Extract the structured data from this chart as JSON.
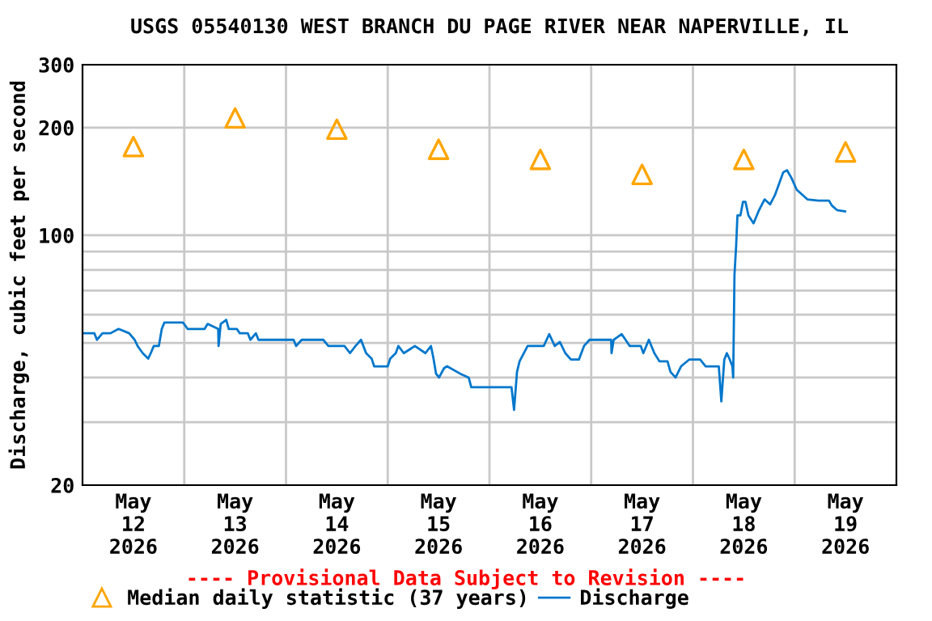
{
  "chart_data": {
    "type": "line",
    "title": "USGS 05540130 WEST BRANCH DU PAGE RIVER NEAR NAPERVILLE, IL",
    "ylabel": "Discharge, cubic feet per second",
    "annotations": [
      "---- Provisional Data Subject to Revision ----"
    ],
    "log": "y",
    "ylim": [
      20,
      300
    ],
    "yticks": [
      20,
      {
        "value": 30,
        "label": null
      },
      {
        "value": 40,
        "label": null
      },
      {
        "value": 50,
        "label": null
      },
      {
        "value": 60,
        "label": null
      },
      {
        "value": 70,
        "label": null
      },
      {
        "value": 80,
        "label": null
      },
      {
        "value": 90,
        "label": null
      },
      100,
      200,
      300
    ],
    "xlim": [
      "2026-05-12T00:00",
      "2026-05-20T00:00"
    ],
    "xticks": [
      {
        "value": "2026-05-12T12:00",
        "label": "May\n12\n2026"
      },
      {
        "value": "2026-05-13T12:00",
        "label": "May\n13\n2026"
      },
      {
        "value": "2026-05-14T12:00",
        "label": "May\n14\n2026"
      },
      {
        "value": "2026-05-15T12:00",
        "label": "May\n15\n2026"
      },
      {
        "value": "2026-05-16T12:00",
        "label": "May\n16\n2026"
      },
      {
        "value": "2026-05-17T12:00",
        "label": "May\n17\n2026"
      },
      {
        "value": "2026-05-18T12:00",
        "label": "May\n18\n2026"
      },
      {
        "value": "2026-05-19T12:00",
        "label": "May\n19\n2026"
      },
      {
        "value": "2026-05-13T00:00",
        "label": null
      },
      {
        "value": "2026-05-14T00:00",
        "label": null
      },
      {
        "value": "2026-05-15T00:00",
        "label": null
      },
      {
        "value": "2026-05-16T00:00",
        "label": null
      },
      {
        "value": "2026-05-17T00:00",
        "label": null
      },
      {
        "value": "2026-05-18T00:00",
        "label": null
      },
      {
        "value": "2026-05-19T00:00",
        "label": null
      }
    ],
    "grid": true,
    "legend": "bottom",
    "series": [
      {
        "name": "Median daily statistic (37 years)",
        "type": "scatter",
        "marker": "triangle",
        "color": "#ffa500",
        "x": [
          "2026-05-12T12:00",
          "2026-05-13T12:00",
          "2026-05-14T12:00",
          "2026-05-15T12:00",
          "2026-05-16T12:00",
          "2026-05-17T12:00",
          "2026-05-18T12:00",
          "2026-05-19T12:00"
        ],
        "values": [
          177,
          213,
          198,
          174,
          163,
          148,
          163,
          171
        ]
      },
      {
        "name": "Discharge",
        "color": "#0077cc",
        "line_style": "solid",
        "x": [
          "2026-05-12T00:15",
          "2026-05-12T02:48",
          "2026-05-12T03:24",
          "2026-05-12T04:42",
          "2026-05-12T06:36",
          "2026-05-12T08:30",
          "2026-05-12T11:00",
          "2026-05-12T12:18",
          "2026-05-12T13:00",
          "2026-05-12T14:12",
          "2026-05-12T15:30",
          "2026-05-12T16:06",
          "2026-05-12T16:48",
          "2026-05-12T18:00",
          "2026-05-12T18:42",
          "2026-05-12T19:18",
          "2026-05-12T23:42",
          "2026-05-13T00:48",
          "2026-05-13T04:48",
          "2026-05-13T05:30",
          "2026-05-13T08:00",
          "2026-05-13T08:06",
          "2026-05-13T08:36",
          "2026-05-13T09:54",
          "2026-05-13T10:30",
          "2026-05-13T12:24",
          "2026-05-13T13:06",
          "2026-05-13T15:00",
          "2026-05-13T15:36",
          "2026-05-13T16:54",
          "2026-05-13T17:30",
          "2026-05-13T20:06",
          "2026-05-14T01:48",
          "2026-05-14T02:24",
          "2026-05-14T03:42",
          "2026-05-14T08:48",
          "2026-05-14T10:00",
          "2026-05-14T13:48",
          "2026-05-14T15:06",
          "2026-05-14T16:24",
          "2026-05-14T17:42",
          "2026-05-14T18:54",
          "2026-05-14T20:12",
          "2026-05-14T20:48",
          "2026-05-15T00:00",
          "2026-05-15T00:36",
          "2026-05-15T01:54",
          "2026-05-15T02:30",
          "2026-05-15T03:48",
          "2026-05-15T06:24",
          "2026-05-15T08:54",
          "2026-05-15T10:12",
          "2026-05-15T10:48",
          "2026-05-15T11:24",
          "2026-05-15T12:06",
          "2026-05-15T13:18",
          "2026-05-15T14:00",
          "2026-05-15T17:06",
          "2026-05-15T19:06",
          "2026-05-15T19:42",
          "2026-05-16T05:12",
          "2026-05-16T05:48",
          "2026-05-16T06:30",
          "2026-05-16T07:06",
          "2026-05-16T09:00",
          "2026-05-16T12:48",
          "2026-05-16T14:06",
          "2026-05-16T15:24",
          "2026-05-16T16:36",
          "2026-05-16T17:54",
          "2026-05-16T19:12",
          "2026-05-16T21:06",
          "2026-05-16T22:18",
          "2026-05-16T23:36",
          "2026-05-17T04:42",
          "2026-05-17T04:48",
          "2026-05-17T05:18",
          "2026-05-17T07:12",
          "2026-05-17T09:06",
          "2026-05-17T11:42",
          "2026-05-17T12:18",
          "2026-05-17T13:36",
          "2026-05-17T14:54",
          "2026-05-17T16:06",
          "2026-05-17T18:00",
          "2026-05-17T18:42",
          "2026-05-17T19:54",
          "2026-05-17T21:12",
          "2026-05-17T23:06",
          "2026-05-18T01:42",
          "2026-05-18T03:00",
          "2026-05-18T06:06",
          "2026-05-18T06:42",
          "2026-05-18T07:24",
          "2026-05-18T08:00",
          "2026-05-18T08:42",
          "2026-05-18T09:18",
          "2026-05-18T09:30",
          "2026-05-18T09:48",
          "2026-05-18T10:12",
          "2026-05-18T10:30",
          "2026-05-18T11:12",
          "2026-05-18T11:48",
          "2026-05-18T12:24",
          "2026-05-18T13:06",
          "2026-05-18T14:18",
          "2026-05-18T15:36",
          "2026-05-18T16:54",
          "2026-05-18T18:12",
          "2026-05-18T19:24",
          "2026-05-18T20:06",
          "2026-05-18T21:18",
          "2026-05-18T22:12",
          "2026-05-18T23:12",
          "2026-05-19T00:30",
          "2026-05-19T03:00",
          "2026-05-19T05:36",
          "2026-05-19T08:06",
          "2026-05-19T08:48",
          "2026-05-19T10:00",
          "2026-05-19T11:54"
        ],
        "values": [
          53.2,
          53.2,
          51,
          53.2,
          53.2,
          54.7,
          53.2,
          51,
          49,
          46.8,
          45.2,
          46.8,
          49,
          49,
          54.7,
          57,
          57,
          54.7,
          54.7,
          56.5,
          54.7,
          49,
          56.5,
          58,
          54.7,
          54.7,
          53.2,
          53.2,
          51,
          53.2,
          51,
          51,
          51,
          49,
          51,
          51,
          49,
          49,
          46.8,
          49,
          51,
          46.8,
          45.2,
          43,
          43,
          45.2,
          46.8,
          49,
          46.8,
          49,
          46.8,
          49,
          45.2,
          41,
          40,
          42.5,
          43,
          41,
          40,
          37.6,
          37.6,
          32.5,
          41.5,
          44.4,
          49,
          49,
          52.9,
          49,
          50.3,
          46.8,
          44.9,
          44.9,
          49,
          51,
          51,
          46.8,
          51,
          52.9,
          49,
          49,
          46.8,
          51,
          46.8,
          44.4,
          44.4,
          41.5,
          40,
          43,
          44.9,
          44.9,
          43,
          43,
          34.3,
          44.9,
          46.8,
          44.9,
          43,
          40,
          77.5,
          93.8,
          113.6,
          113.6,
          124,
          124,
          113.6,
          108,
          117.6,
          126,
          122,
          130,
          137,
          150,
          152,
          145,
          134,
          126,
          125,
          125,
          121,
          117.6,
          116.6
        ]
      }
    ]
  }
}
